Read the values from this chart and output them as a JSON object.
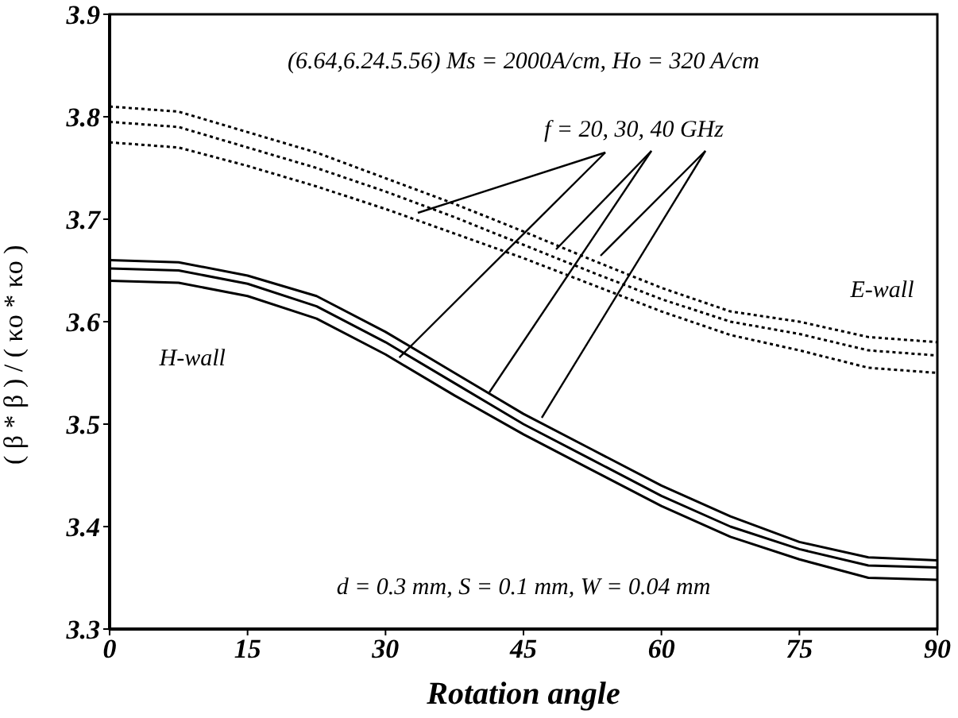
{
  "chart_data": {
    "type": "line",
    "xlabel": "Rotation angle",
    "ylabel": "( β * β ) / ( κo * κo )",
    "x": [
      0,
      7.5,
      15,
      22.5,
      30,
      37.5,
      45,
      52.5,
      60,
      67.5,
      75,
      82.5,
      90
    ],
    "series": [
      {
        "color": "#000000",
        "line_style": "dotted",
        "values": [
          3.81,
          3.805,
          3.785,
          3.765,
          3.74,
          3.715,
          3.688,
          3.66,
          3.633,
          3.61,
          3.6,
          3.585,
          3.58
        ]
      },
      {
        "color": "#000000",
        "line_style": "dotted",
        "values": [
          3.795,
          3.79,
          3.77,
          3.75,
          3.727,
          3.702,
          3.675,
          3.648,
          3.622,
          3.6,
          3.588,
          3.572,
          3.567
        ]
      },
      {
        "color": "#000000",
        "line_style": "dotted",
        "values": [
          3.775,
          3.77,
          3.752,
          3.732,
          3.71,
          3.686,
          3.662,
          3.636,
          3.61,
          3.587,
          3.572,
          3.555,
          3.55
        ]
      },
      {
        "color": "#000000",
        "line_style": "solid",
        "values": [
          3.66,
          3.658,
          3.645,
          3.625,
          3.59,
          3.55,
          3.51,
          3.475,
          3.44,
          3.41,
          3.385,
          3.37,
          3.367
        ]
      },
      {
        "color": "#000000",
        "line_style": "solid",
        "values": [
          3.652,
          3.65,
          3.637,
          3.615,
          3.58,
          3.54,
          3.5,
          3.465,
          3.43,
          3.4,
          3.378,
          3.362,
          3.36
        ]
      },
      {
        "color": "#000000",
        "line_style": "solid",
        "values": [
          3.64,
          3.638,
          3.625,
          3.603,
          3.568,
          3.528,
          3.49,
          3.455,
          3.42,
          3.39,
          3.368,
          3.35,
          3.348
        ]
      }
    ],
    "xlim": [
      0,
      90
    ],
    "xticks": [
      0,
      15,
      30,
      45,
      60,
      75,
      90
    ],
    "ylim": [
      3.3,
      3.9
    ],
    "yticks": [
      3.3,
      3.4,
      3.5,
      3.6,
      3.7,
      3.8,
      3.9
    ],
    "grid": false,
    "legend": false,
    "marker": "none",
    "annotations": [
      "(6.64,6.24.5.56) Ms = 2000A/cm, Ho = 320 A/cm",
      {
        "text": "f = 20, 30, 40 GHz",
        "x": 31.5,
        "y": 3.565
      },
      "E-wall",
      "H-wall",
      "d = 0.3 mm, S = 0.1 mm, W = 0.04 mm"
    ]
  }
}
